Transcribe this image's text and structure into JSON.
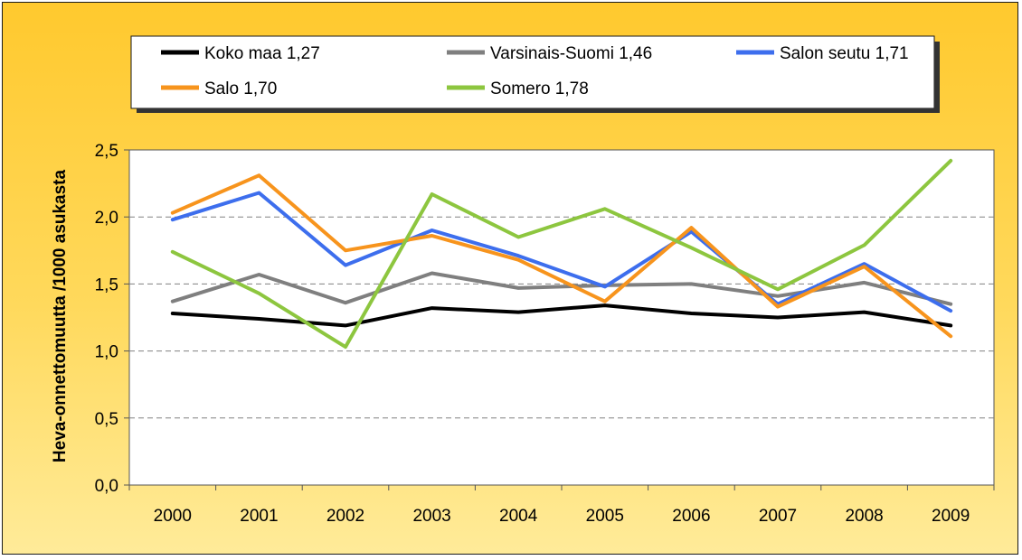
{
  "chart_data": {
    "type": "line",
    "title": "",
    "xlabel": "",
    "ylabel": "Heva-onnettomuutta /1000 asukasta",
    "categories": [
      "2000",
      "2001",
      "2002",
      "2003",
      "2004",
      "2005",
      "2006",
      "2007",
      "2008",
      "2009"
    ],
    "ylim": [
      0,
      2.5
    ],
    "yticks": [
      0,
      0.5,
      1.0,
      1.5,
      2.0,
      2.5
    ],
    "ytick_labels": [
      "0,0",
      "0,5",
      "1,0",
      "1,5",
      "2,0",
      "2,5"
    ],
    "grid": "horizontal dashed",
    "legend_position": "top",
    "series": [
      {
        "name": "Koko maa 1,27",
        "color": "#000000",
        "values": [
          1.28,
          1.24,
          1.19,
          1.32,
          1.29,
          1.34,
          1.28,
          1.25,
          1.29,
          1.19
        ]
      },
      {
        "name": "Varsinais-Suomi 1,46",
        "color": "#7f7f7f",
        "values": [
          1.37,
          1.57,
          1.36,
          1.58,
          1.47,
          1.49,
          1.5,
          1.41,
          1.51,
          1.35
        ]
      },
      {
        "name": "Salon seutu 1,71",
        "color": "#3d6eed",
        "values": [
          1.98,
          2.18,
          1.64,
          1.9,
          1.71,
          1.48,
          1.89,
          1.35,
          1.65,
          1.3
        ]
      },
      {
        "name": "Salo 1,70",
        "color": "#f7941d",
        "values": [
          2.03,
          2.31,
          1.75,
          1.86,
          1.68,
          1.37,
          1.92,
          1.33,
          1.63,
          1.11
        ]
      },
      {
        "name": "Somero 1,78",
        "color": "#8dc63f",
        "values": [
          1.74,
          1.43,
          1.03,
          2.17,
          1.85,
          2.06,
          1.77,
          1.46,
          1.79,
          2.42
        ]
      }
    ]
  }
}
